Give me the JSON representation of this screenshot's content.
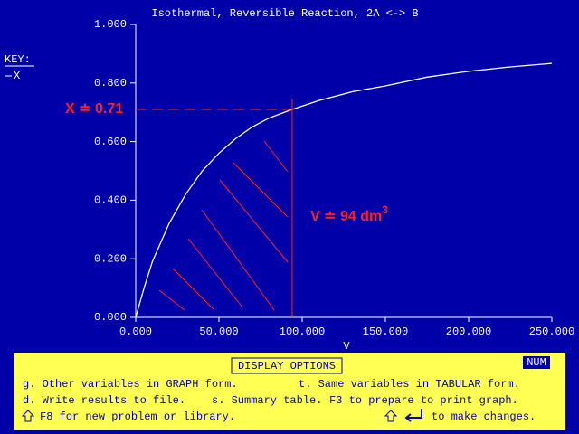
{
  "chart_data": {
    "type": "line",
    "title": "Isothermal, Reversible Reaction, 2A <-> B",
    "x_label": "V",
    "legend_title": "KEY:",
    "x": [
      0,
      5,
      10,
      20,
      30,
      40,
      50,
      60,
      70,
      80,
      94,
      110,
      130,
      150,
      175,
      200,
      225,
      250
    ],
    "series": [
      {
        "name": "X",
        "color": "#ffffff",
        "values": [
          0,
          0.1,
          0.19,
          0.32,
          0.42,
          0.5,
          0.56,
          0.61,
          0.65,
          0.68,
          0.71,
          0.74,
          0.77,
          0.79,
          0.82,
          0.84,
          0.855,
          0.867
        ]
      }
    ],
    "xlim": [
      0,
      250
    ],
    "xticks": [
      {
        "value": 0,
        "label": "0.000"
      },
      {
        "value": 50,
        "label": "50.000"
      },
      {
        "value": 100,
        "label": "100.000"
      },
      {
        "value": 150,
        "label": "150.000"
      },
      {
        "value": 200,
        "label": "200.000"
      },
      {
        "value": 250,
        "label": "250.000"
      }
    ],
    "ylim": [
      0,
      1
    ],
    "yticks": [
      {
        "value": 0,
        "label": "0.000"
      },
      {
        "value": 0.2,
        "label": "0.200"
      },
      {
        "value": 0.4,
        "label": "0.400"
      },
      {
        "value": 0.6,
        "label": "0.600"
      },
      {
        "value": 0.8,
        "label": "0.800"
      },
      {
        "value": 1,
        "label": "1.000"
      }
    ],
    "annotations": [
      {
        "text": "X ≐ 0.71"
      },
      {
        "text": "V ≐ 94 dm",
        "superscript": "3"
      }
    ]
  },
  "display_options": {
    "title": "DISPLAY OPTIONS",
    "status": "NUM",
    "lines": [
      [
        "g. Other variables in GRAPH form.",
        "t. Same variables in TABULAR form."
      ],
      [
        "d. Write results to file.",
        "s. Summary table.",
        "F3 to prepare to print graph."
      ],
      [
        "F8 for new problem or library.",
        "to make changes."
      ]
    ]
  }
}
